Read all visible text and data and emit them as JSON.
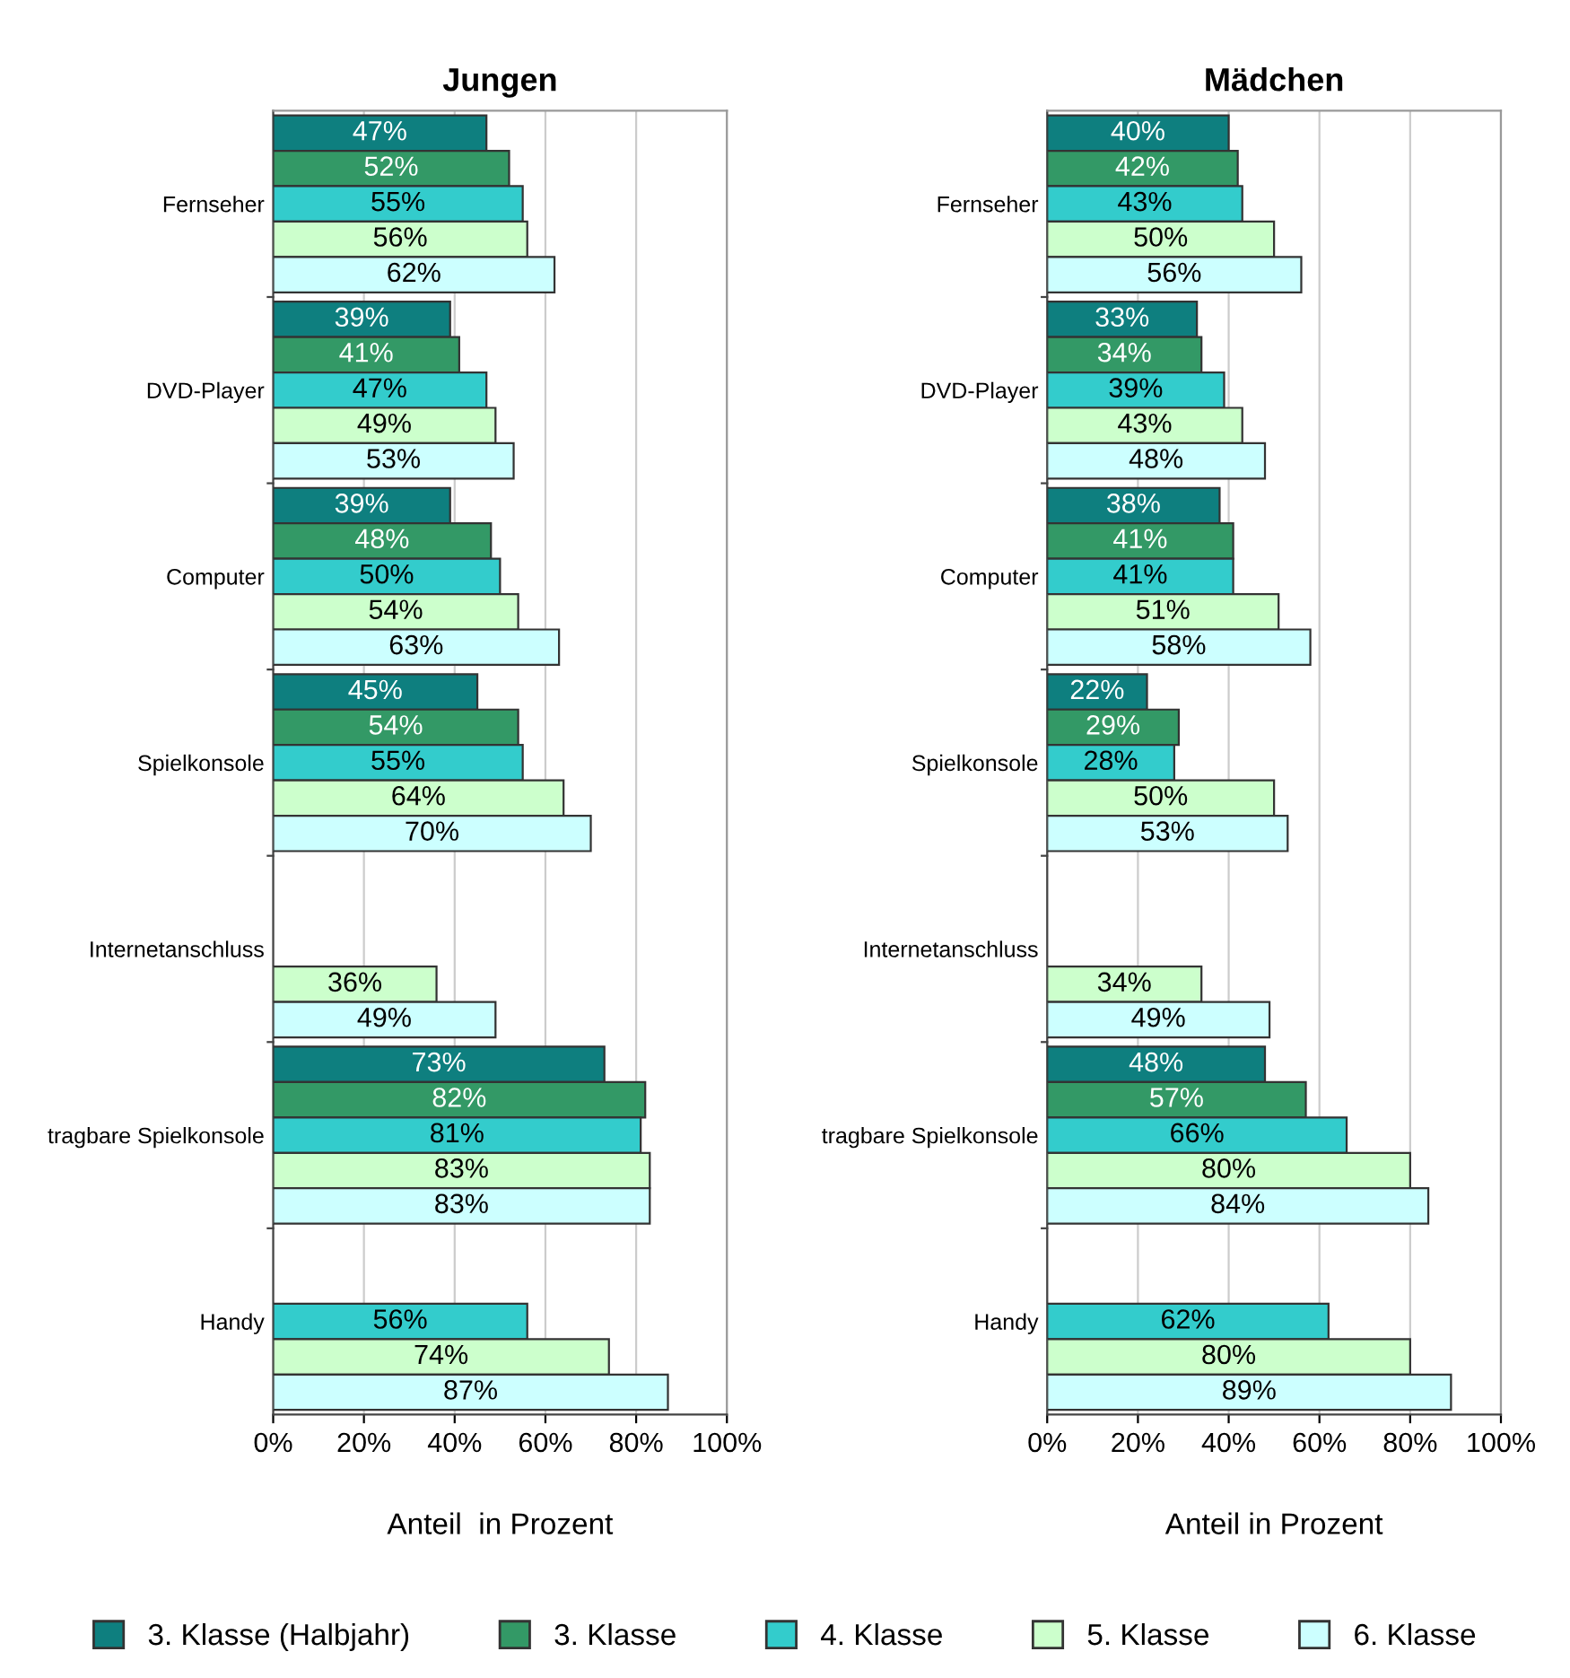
{
  "chart_data": [
    {
      "type": "bar",
      "orientation": "horizontal",
      "title": "Jungen",
      "xlabel": "Anteil  in Prozent",
      "categories": [
        "Fernseher",
        "DVD-Player",
        "Computer",
        "Spielkonsole",
        "Internetanschluss",
        "tragbare Spielkonsole",
        "Handy"
      ],
      "xlim": [
        0,
        100
      ],
      "xticks": [
        {
          "value": 0,
          "label": "0%"
        },
        {
          "value": 20,
          "label": "20%"
        },
        {
          "value": 40,
          "label": "40%"
        },
        {
          "value": 60,
          "label": "60%"
        },
        {
          "value": 80,
          "label": "80%"
        },
        {
          "value": 100,
          "label": "100%"
        }
      ],
      "grid": "x",
      "legend": "bottom",
      "series": [
        {
          "name": "3. Klasse (Halbjahr)",
          "color": "#0e7f7f",
          "values": [
            47,
            39,
            39,
            45,
            null,
            73,
            null
          ],
          "value_labels": [
            "47%",
            "39%",
            "39%",
            "45%",
            null,
            "73%",
            null
          ]
        },
        {
          "name": "3. Klasse",
          "color": "#339966",
          "values": [
            52,
            41,
            48,
            54,
            null,
            82,
            null
          ],
          "value_labels": [
            "52%",
            "41%",
            "48%",
            "54%",
            null,
            "82%",
            null
          ]
        },
        {
          "name": "4. Klasse",
          "color": "#33cccc",
          "values": [
            55,
            47,
            50,
            55,
            null,
            81,
            56
          ],
          "value_labels": [
            "55%",
            "47%",
            "50%",
            "55%",
            null,
            "81%",
            "56%"
          ]
        },
        {
          "name": "5. Klasse",
          "color": "#ccffcc",
          "values": [
            56,
            49,
            54,
            64,
            36,
            83,
            74
          ],
          "value_labels": [
            "56%",
            "49%",
            "54%",
            "64%",
            "36%",
            "83%",
            "74%"
          ]
        },
        {
          "name": "6. Klasse",
          "color": "#ccffff",
          "values": [
            62,
            53,
            63,
            70,
            49,
            83,
            87
          ],
          "value_labels": [
            "62%",
            "53%",
            "63%",
            "70%",
            "49%",
            "83%",
            "87%"
          ]
        }
      ]
    },
    {
      "type": "bar",
      "orientation": "horizontal",
      "title": "Mädchen",
      "xlabel": "Anteil in Prozent",
      "categories": [
        "Fernseher",
        "DVD-Player",
        "Computer",
        "Spielkonsole",
        "Internetanschluss",
        "tragbare Spielkonsole",
        "Handy"
      ],
      "xlim": [
        0,
        100
      ],
      "xticks": [
        {
          "value": 0,
          "label": "0%"
        },
        {
          "value": 20,
          "label": "20%"
        },
        {
          "value": 40,
          "label": "40%"
        },
        {
          "value": 60,
          "label": "60%"
        },
        {
          "value": 80,
          "label": "80%"
        },
        {
          "value": 100,
          "label": "100%"
        }
      ],
      "grid": "x",
      "series": [
        {
          "name": "3. Klasse (Halbjahr)",
          "color": "#0e7f7f",
          "values": [
            40,
            33,
            38,
            22,
            null,
            48,
            null
          ],
          "value_labels": [
            "40%",
            "33%",
            "38%",
            "22%",
            null,
            "48%",
            null
          ]
        },
        {
          "name": "3. Klasse",
          "color": "#339966",
          "values": [
            42,
            34,
            41,
            29,
            null,
            57,
            null
          ],
          "value_labels": [
            "42%",
            "34%",
            "41%",
            "29%",
            null,
            "57%",
            null
          ]
        },
        {
          "name": "4. Klasse",
          "color": "#33cccc",
          "values": [
            43,
            39,
            41,
            28,
            null,
            66,
            62
          ],
          "value_labels": [
            "43%",
            "39%",
            "41%",
            "28%",
            null,
            "66%",
            "62%"
          ]
        },
        {
          "name": "5. Klasse",
          "color": "#ccffcc",
          "values": [
            50,
            43,
            51,
            50,
            34,
            80,
            80
          ],
          "value_labels": [
            "50%",
            "43%",
            "51%",
            "50%",
            "34%",
            "80%",
            "80%"
          ]
        },
        {
          "name": "6. Klasse",
          "color": "#ccffff",
          "values": [
            56,
            48,
            58,
            53,
            49,
            84,
            89
          ],
          "value_labels": [
            "56%",
            "48%",
            "58%",
            "53%",
            "49%",
            "84%",
            "89%"
          ]
        }
      ]
    }
  ]
}
